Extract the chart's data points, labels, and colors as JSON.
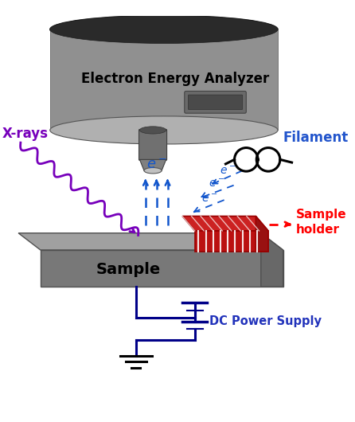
{
  "bg_color": "#ffffff",
  "analyzer_color": "#909090",
  "analyzer_dark": "#404040",
  "analyzer_top": "#2a2a2a",
  "sample_top_color": "#a0a0a0",
  "sample_front_color": "#787878",
  "sample_right_color": "#686868",
  "holder_color": "#cc0000",
  "xray_color": "#7700bb",
  "electron_color": "#1155cc",
  "circuit_color": "#000088",
  "ground_color": "#000000",
  "text_analyzer": "Electron Energy Analyzer",
  "text_xrays": "X-rays",
  "text_sample": "Sample",
  "text_holder": "Sample\nholder",
  "text_filament": "Filament",
  "text_dc": "DC Power Supply"
}
